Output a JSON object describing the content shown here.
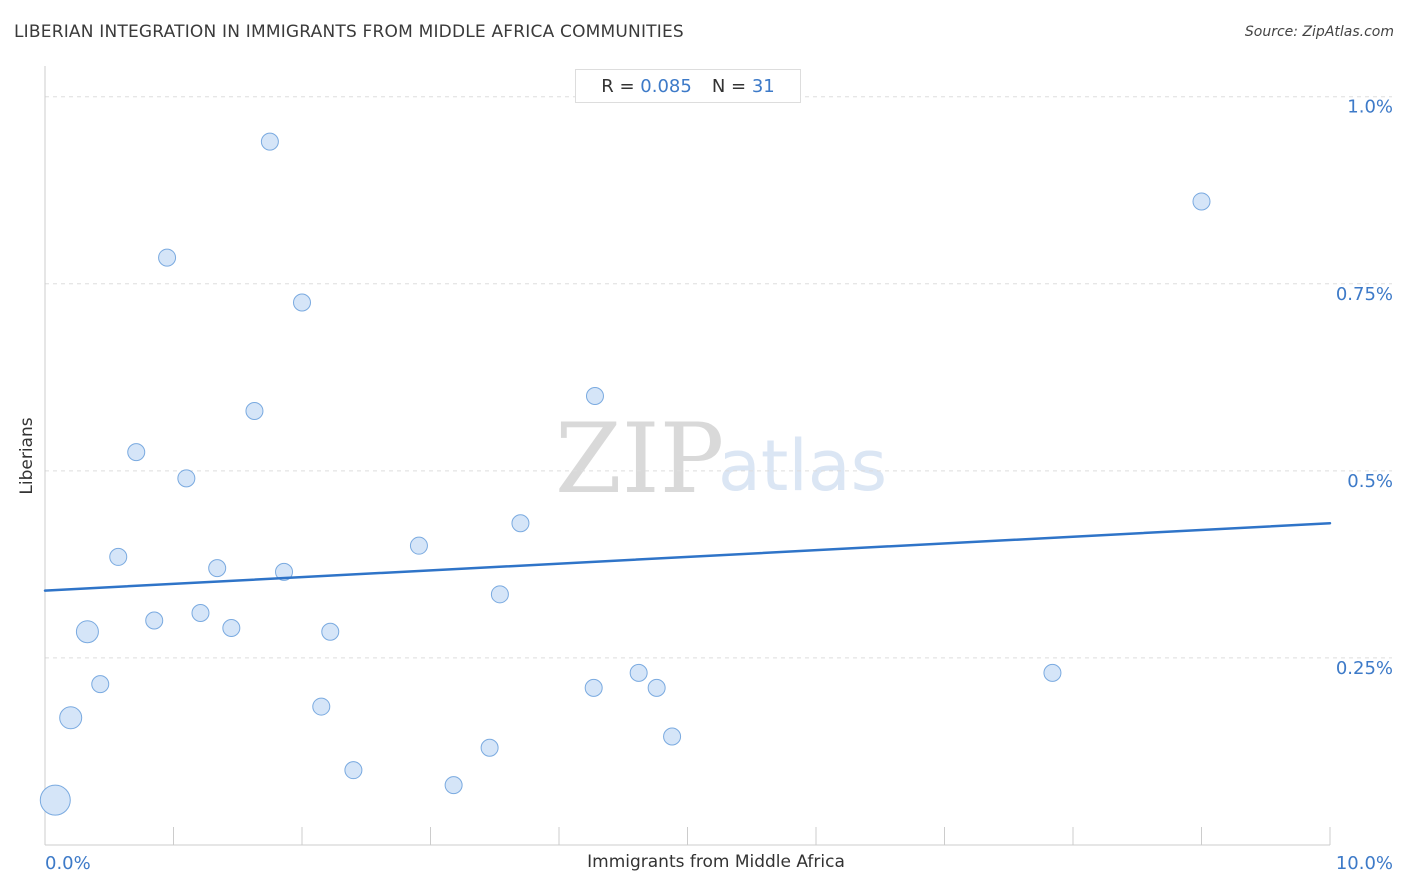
{
  "header": {
    "title": "LIBERIAN INTEGRATION IN IMMIGRANTS FROM MIDDLE AFRICA COMMUNITIES",
    "source": "Source: ZipAtlas.com"
  },
  "stats": {
    "r_label": "R =",
    "r_value": "0.085",
    "n_label": "N =",
    "n_value": "31"
  },
  "watermark": {
    "zip": "ZIP",
    "atlas": "atlas"
  },
  "colors": {
    "point_fill": "#d5e5f8",
    "point_stroke": "#7aaae0",
    "trend": "#2f74c8",
    "tick_label": "#3d7ac8",
    "grid": "#dddddd"
  },
  "chart_data": {
    "type": "scatter",
    "xlabel": "Immigrants from Middle Africa",
    "ylabel": "Liberians",
    "xlim": [
      0,
      10
    ],
    "ylim": [
      0,
      1.0
    ],
    "x_tick_labels": [
      "0.0%",
      "10.0%"
    ],
    "y_ticks": [
      {
        "value": 0.25,
        "label": "0.25%"
      },
      {
        "value": 0.5,
        "label": "0.5%"
      },
      {
        "value": 0.75,
        "label": "0.75%"
      },
      {
        "value": 1.0,
        "label": "1.0%"
      }
    ],
    "grid": true,
    "trend_line": {
      "x": [
        0,
        10
      ],
      "y": [
        0.34,
        0.43
      ]
    },
    "points": [
      {
        "x": 0.08,
        "y": 0.06,
        "size": 3
      },
      {
        "x": 0.2,
        "y": 0.17,
        "size": 2
      },
      {
        "x": 0.33,
        "y": 0.285,
        "size": 2
      },
      {
        "x": 0.43,
        "y": 0.215,
        "size": 1
      },
      {
        "x": 0.57,
        "y": 0.385,
        "size": 1
      },
      {
        "x": 0.71,
        "y": 0.525,
        "size": 1
      },
      {
        "x": 0.85,
        "y": 0.3,
        "size": 1
      },
      {
        "x": 0.95,
        "y": 0.785,
        "size": 1
      },
      {
        "x": 1.1,
        "y": 0.49,
        "size": 1
      },
      {
        "x": 1.21,
        "y": 0.31,
        "size": 1
      },
      {
        "x": 1.34,
        "y": 0.37,
        "size": 1
      },
      {
        "x": 1.45,
        "y": 0.29,
        "size": 1
      },
      {
        "x": 1.63,
        "y": 0.58,
        "size": 1
      },
      {
        "x": 1.75,
        "y": 0.94,
        "size": 1
      },
      {
        "x": 1.86,
        "y": 0.365,
        "size": 1
      },
      {
        "x": 2.0,
        "y": 0.725,
        "size": 1
      },
      {
        "x": 2.15,
        "y": 0.185,
        "size": 1
      },
      {
        "x": 2.22,
        "y": 0.285,
        "size": 1
      },
      {
        "x": 2.4,
        "y": 0.1,
        "size": 1
      },
      {
        "x": 2.91,
        "y": 0.4,
        "size": 1
      },
      {
        "x": 3.18,
        "y": 0.08,
        "size": 1
      },
      {
        "x": 3.46,
        "y": 0.13,
        "size": 1
      },
      {
        "x": 3.54,
        "y": 0.335,
        "size": 1
      },
      {
        "x": 3.7,
        "y": 0.43,
        "size": 1
      },
      {
        "x": 4.27,
        "y": 0.21,
        "size": 1
      },
      {
        "x": 4.28,
        "y": 0.6,
        "size": 1
      },
      {
        "x": 4.62,
        "y": 0.23,
        "size": 1
      },
      {
        "x": 4.76,
        "y": 0.21,
        "size": 1
      },
      {
        "x": 4.88,
        "y": 0.145,
        "size": 1
      },
      {
        "x": 7.84,
        "y": 0.23,
        "size": 1
      },
      {
        "x": 9.0,
        "y": 0.86,
        "size": 1
      }
    ]
  }
}
